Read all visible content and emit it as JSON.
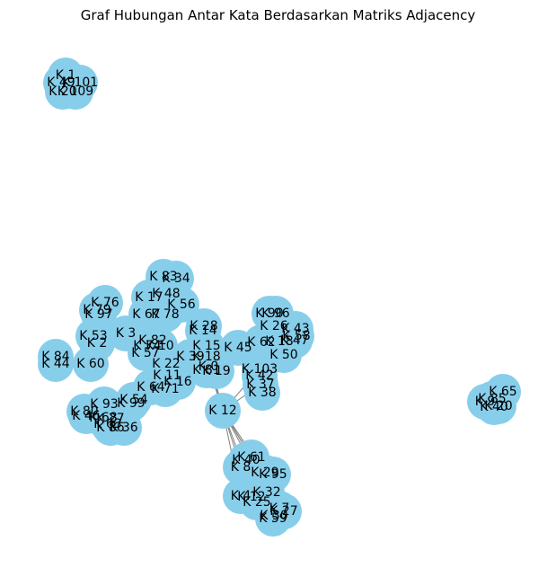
{
  "title": "Graf Hubungan Antar Kata Berdasarkan Matriks Adjacency",
  "colors": {
    "node": "#87ceeb",
    "edge": "#808080",
    "label": "#000000"
  },
  "nodes": [
    {
      "id": "n1",
      "label": "K 1"
    },
    {
      "id": "n2",
      "label": "K 101"
    },
    {
      "id": "n3",
      "label": "K 49"
    },
    {
      "id": "n4",
      "label": "K 20"
    },
    {
      "id": "n5",
      "label": "K 109"
    },
    {
      "id": "n6",
      "label": "K 83"
    },
    {
      "id": "n7",
      "label": "K 34"
    },
    {
      "id": "n8",
      "label": "K 48"
    },
    {
      "id": "n9",
      "label": "K 17"
    },
    {
      "id": "n10",
      "label": "K 56"
    },
    {
      "id": "n11",
      "label": "K 67"
    },
    {
      "id": "n12",
      "label": "K 78"
    },
    {
      "id": "n13",
      "label": "K 76"
    },
    {
      "id": "n14",
      "label": "K 79"
    },
    {
      "id": "n15",
      "label": "K 97"
    },
    {
      "id": "n16",
      "label": "K 53"
    },
    {
      "id": "n17",
      "label": "K 2"
    },
    {
      "id": "n18",
      "label": "K 3"
    },
    {
      "id": "n19",
      "label": "K 84"
    },
    {
      "id": "n20",
      "label": "K 44"
    },
    {
      "id": "n21",
      "label": "K 60"
    },
    {
      "id": "n22",
      "label": "K 82"
    },
    {
      "id": "n23",
      "label": "K 74"
    },
    {
      "id": "n24",
      "label": "K 10"
    },
    {
      "id": "n25",
      "label": "K 57"
    },
    {
      "id": "n26",
      "label": "K 22"
    },
    {
      "id": "n27",
      "label": "K 39"
    },
    {
      "id": "n28",
      "label": "K 11"
    },
    {
      "id": "n29",
      "label": "K 16"
    },
    {
      "id": "n30",
      "label": "K 64"
    },
    {
      "id": "n31",
      "label": "K 71"
    },
    {
      "id": "n32",
      "label": "K 54"
    },
    {
      "id": "n33",
      "label": "K 99"
    },
    {
      "id": "n34",
      "label": "K 28"
    },
    {
      "id": "n35",
      "label": "K 14"
    },
    {
      "id": "n36",
      "label": "K 15"
    },
    {
      "id": "n37",
      "label": "K 18"
    },
    {
      "id": "n38",
      "label": "K 0"
    },
    {
      "id": "n39",
      "label": "K 81"
    },
    {
      "id": "n40",
      "label": "K 19"
    },
    {
      "id": "n41",
      "label": "K 45"
    },
    {
      "id": "n42",
      "label": "K 12"
    },
    {
      "id": "n43",
      "label": "K 90"
    },
    {
      "id": "n44",
      "label": "K 96"
    },
    {
      "id": "n45",
      "label": "K 26"
    },
    {
      "id": "n46",
      "label": "K 43"
    },
    {
      "id": "n47",
      "label": "K 62"
    },
    {
      "id": "n48",
      "label": "K 18"
    },
    {
      "id": "n49",
      "label": "K 47"
    },
    {
      "id": "n50",
      "label": "K 58"
    },
    {
      "id": "n51",
      "label": "K 50"
    },
    {
      "id": "n52",
      "label": "K 103"
    },
    {
      "id": "n53",
      "label": "K 42"
    },
    {
      "id": "n54",
      "label": "K 37"
    },
    {
      "id": "n55",
      "label": "K 38"
    },
    {
      "id": "n56",
      "label": "K 93"
    },
    {
      "id": "n57",
      "label": "K 80"
    },
    {
      "id": "n58",
      "label": "K 46"
    },
    {
      "id": "n59",
      "label": "K 68"
    },
    {
      "id": "n60",
      "label": "K 27"
    },
    {
      "id": "n61",
      "label": "K 63"
    },
    {
      "id": "n62",
      "label": "K 86"
    },
    {
      "id": "n63",
      "label": "K 36"
    },
    {
      "id": "n64",
      "label": "K 61"
    },
    {
      "id": "n65",
      "label": "K 40"
    },
    {
      "id": "n66",
      "label": "K 8"
    },
    {
      "id": "n67",
      "label": "K 29"
    },
    {
      "id": "n68",
      "label": "K 95"
    },
    {
      "id": "n69",
      "label": "K 32"
    },
    {
      "id": "n70",
      "label": "K 4"
    },
    {
      "id": "n71",
      "label": "K 12"
    },
    {
      "id": "n72",
      "label": "K 25"
    },
    {
      "id": "n73",
      "label": "K 7"
    },
    {
      "id": "n74",
      "label": "K 27"
    },
    {
      "id": "n75",
      "label": "K 59"
    },
    {
      "id": "n76",
      "label": "K 30"
    },
    {
      "id": "n77",
      "label": "K 65"
    },
    {
      "id": "n78",
      "label": "K 85"
    },
    {
      "id": "n79",
      "label": "K 9"
    },
    {
      "id": "n80",
      "label": "K 20"
    },
    {
      "id": "n81",
      "label": "K 40"
    }
  ],
  "edges": [
    [
      "n42",
      "n36"
    ],
    [
      "n42",
      "n38"
    ],
    [
      "n42",
      "n37"
    ],
    [
      "n42",
      "n52"
    ],
    [
      "n42",
      "n54"
    ],
    [
      "n42",
      "n64"
    ],
    [
      "n42",
      "n66"
    ],
    [
      "n42",
      "n67"
    ],
    [
      "n42",
      "n69"
    ],
    [
      "n42",
      "n70"
    ],
    [
      "n42",
      "n72"
    ],
    [
      "n42",
      "n74"
    ]
  ]
}
